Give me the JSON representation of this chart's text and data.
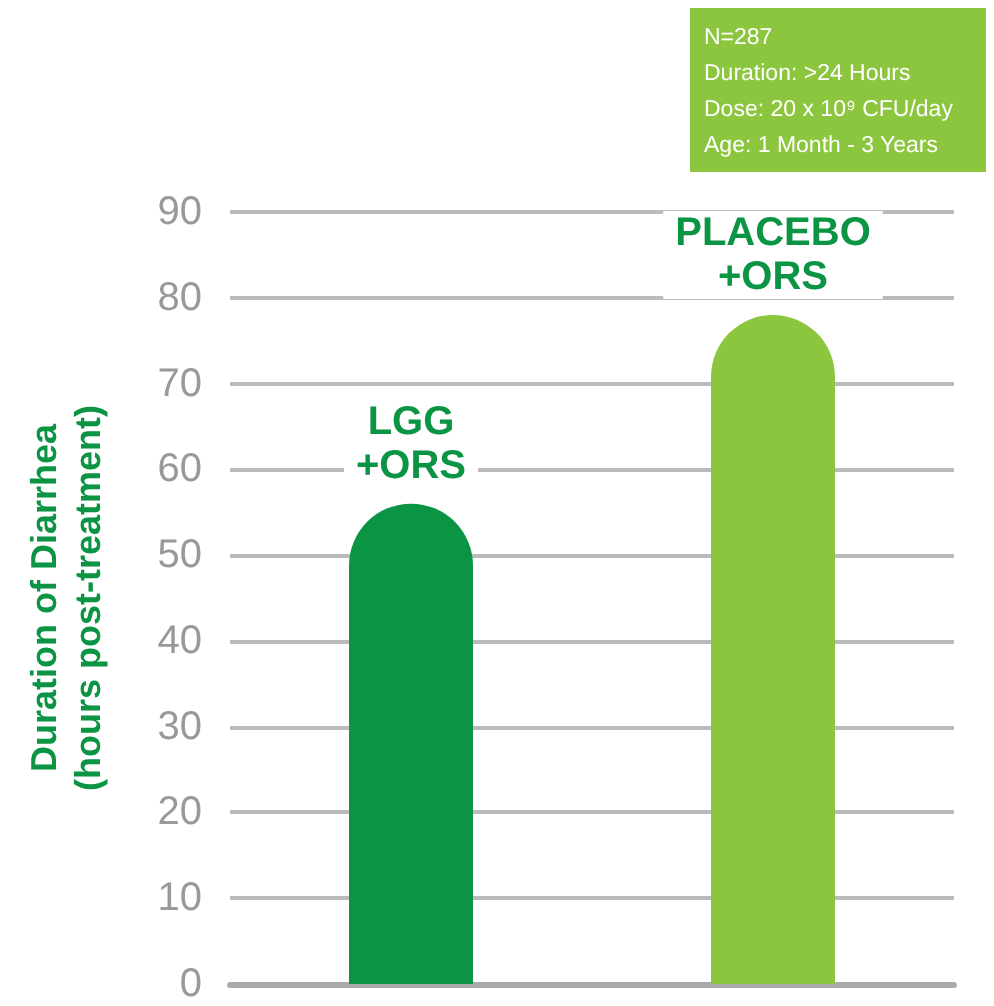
{
  "chart_data": {
    "type": "bar",
    "ylabel": "Duration of Diarrhea\n(hours post-treatment)",
    "categories": [
      "LGG\n+ORS",
      "PLACEBO\n+ORS"
    ],
    "values": [
      56,
      78
    ],
    "colors": [
      "#0b9444",
      "#8cc63f"
    ],
    "ylim": [
      0,
      90
    ],
    "yticks": [
      0,
      10,
      20,
      30,
      40,
      50,
      60,
      70,
      80,
      90
    ],
    "grid": "y",
    "tick_labels": "y",
    "annotations": [
      "N=287\nDuration: >24 Hours\nDose: 20 x 10⁹ CFU/day\nAge: 1 Month - 3 Years"
    ]
  }
}
